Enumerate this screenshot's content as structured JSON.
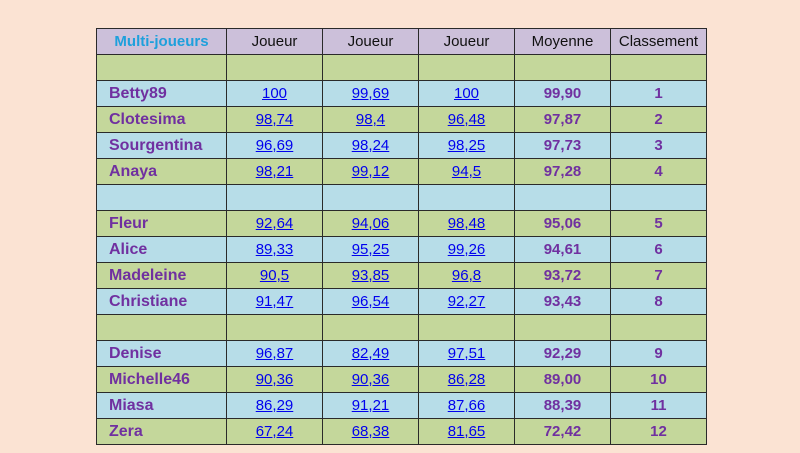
{
  "header": {
    "title": "Multi-joueurs",
    "player1": "Joueur",
    "player2": "Joueur",
    "player3": "Joueur",
    "average": "Moyenne",
    "rank": "Classement"
  },
  "rows": [
    {
      "name": "Betty89",
      "s1": "100",
      "s2": "99,69",
      "s3": "100",
      "avg": "99,90",
      "rank": "1"
    },
    {
      "name": "Clotesima",
      "s1": "98,74",
      "s2": "98,4",
      "s3": "96,48",
      "avg": "97,87",
      "rank": "2"
    },
    {
      "name": "Sourgentina",
      "s1": "96,69",
      "s2": "98,24",
      "s3": "98,25",
      "avg": "97,73",
      "rank": "3"
    },
    {
      "name": "Anaya",
      "s1": "98,21",
      "s2": "99,12",
      "s3": "94,5",
      "avg": "97,28",
      "rank": "4"
    },
    {
      "name": "Fleur",
      "s1": "92,64",
      "s2": "94,06",
      "s3": "98,48",
      "avg": "95,06",
      "rank": "5"
    },
    {
      "name": "Alice",
      "s1": "89,33",
      "s2": "95,25",
      "s3": "99,26",
      "avg": "94,61",
      "rank": "6"
    },
    {
      "name": "Madeleine",
      "s1": "90,5",
      "s2": "93,85",
      "s3": "96,8",
      "avg": "93,72",
      "rank": "7"
    },
    {
      "name": "Christiane",
      "s1": "91,47",
      "s2": "96,54",
      "s3": "92,27",
      "avg": "93,43",
      "rank": "8"
    },
    {
      "name": "Denise",
      "s1": "96,87",
      "s2": "82,49",
      "s3": "97,51",
      "avg": "92,29",
      "rank": "9"
    },
    {
      "name": "Michelle46",
      "s1": "90,36",
      "s2": "90,36",
      "s3": "86,28",
      "avg": "89,00",
      "rank": "10"
    },
    {
      "name": "Miasa",
      "s1": "86,29",
      "s2": "91,21",
      "s3": "87,66",
      "avg": "88,39",
      "rank": "11"
    },
    {
      "name": "Zera",
      "s1": "67,24",
      "s2": "68,38",
      "s3": "81,65",
      "avg": "72,42",
      "rank": "12"
    }
  ],
  "colors": {
    "page_background": "#fbe3d3",
    "header_background": "#ccc0da",
    "row_blue": "#b7dde8",
    "row_green": "#c4d79b",
    "name_text": "#7030a0",
    "title_text": "#1ea0dc",
    "link_text": "#0000ee"
  }
}
